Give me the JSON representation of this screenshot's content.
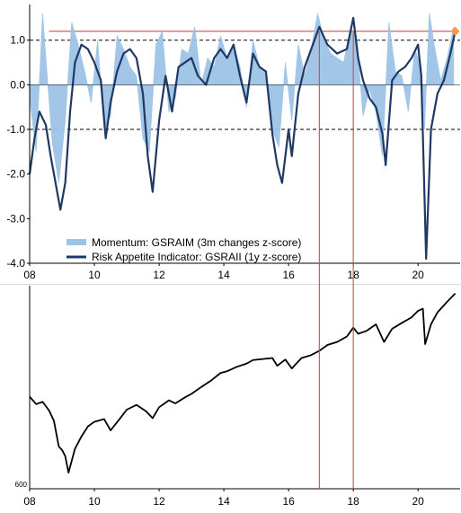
{
  "chart_data": [
    {
      "type": "area+line",
      "title": "",
      "xlabel": "",
      "ylabel": "",
      "xlim": [
        2008.0,
        2021.3
      ],
      "ylim": [
        -4.0,
        1.8
      ],
      "x_ticks": [
        "08",
        "10",
        "12",
        "14",
        "16",
        "18",
        "20"
      ],
      "x_tick_values": [
        2008,
        2010,
        2012,
        2014,
        2016,
        2018,
        2020
      ],
      "y_ticks": [
        "1.0",
        "0.0",
        "-1.0",
        "-2.0",
        "-3.0",
        "-4.0"
      ],
      "y_tick_values": [
        1.0,
        0.0,
        -1.0,
        -2.0,
        -3.0,
        -4.0
      ],
      "reference_lines": [
        {
          "value": 1.0,
          "style": "dashed"
        },
        {
          "value": -1.0,
          "style": "dashed"
        },
        {
          "value": 1.2,
          "style": "solid",
          "color": "#c0504d",
          "x_range": [
            2008.6,
            2021.2
          ]
        }
      ],
      "vertical_markers": [
        2016.95,
        2018.0
      ],
      "latest_point": {
        "x": 2021.15,
        "y": 1.2,
        "color": "#f79646"
      },
      "legend_position": "bottom-left",
      "series": [
        {
          "name": "Momentum: GSRAIM (3m changes z-score)",
          "kind": "area",
          "color": "#9dc3e6",
          "x": [
            2008.0,
            2008.2,
            2008.4,
            2008.5,
            2008.7,
            2008.9,
            2009.1,
            2009.3,
            2009.5,
            2009.7,
            2009.9,
            2010.1,
            2010.3,
            2010.5,
            2010.7,
            2010.9,
            2011.1,
            2011.3,
            2011.5,
            2011.7,
            2011.9,
            2012.1,
            2012.3,
            2012.5,
            2012.7,
            2012.9,
            2013.1,
            2013.3,
            2013.5,
            2013.7,
            2013.9,
            2014.1,
            2014.3,
            2014.5,
            2014.7,
            2014.9,
            2015.1,
            2015.3,
            2015.5,
            2015.7,
            2015.9,
            2016.1,
            2016.3,
            2016.5,
            2016.7,
            2016.9,
            2017.1,
            2017.3,
            2017.5,
            2017.7,
            2017.9,
            2018.1,
            2018.3,
            2018.5,
            2018.7,
            2018.9,
            2019.1,
            2019.3,
            2019.5,
            2019.7,
            2019.9,
            2020.1,
            2020.2,
            2020.35,
            2020.5,
            2020.7,
            2020.9,
            2021.1
          ],
          "values": [
            -0.3,
            -1.5,
            1.6,
            0.6,
            -1.3,
            -2.2,
            -0.8,
            1.4,
            0.9,
            0.3,
            -0.4,
            1.0,
            -1.0,
            -0.7,
            1.1,
            0.8,
            0.4,
            0.2,
            -1.2,
            -1.5,
            0.9,
            1.2,
            -0.6,
            -0.3,
            0.8,
            0.7,
            1.3,
            0.0,
            0.6,
            0.4,
            1.1,
            0.6,
            0.9,
            0.4,
            -0.5,
            1.0,
            0.4,
            0.3,
            -1.0,
            -1.4,
            0.5,
            -0.8,
            0.9,
            0.2,
            0.8,
            1.6,
            1.0,
            0.7,
            0.6,
            0.5,
            1.2,
            1.1,
            -0.7,
            -0.1,
            -0.6,
            -1.6,
            1.4,
            0.3,
            0.2,
            -0.6,
            0.8,
            0.4,
            -1.0,
            1.6,
            0.9,
            0.1,
            0.6,
            1.3
          ]
        },
        {
          "name": "Risk Appetite Indicator: GSRAII (1y z-score)",
          "kind": "line",
          "color": "#1f3864",
          "x": [
            2008.0,
            2008.15,
            2008.3,
            2008.5,
            2008.65,
            2008.8,
            2008.95,
            2009.1,
            2009.25,
            2009.4,
            2009.6,
            2009.8,
            2010.0,
            2010.2,
            2010.35,
            2010.5,
            2010.7,
            2010.9,
            2011.1,
            2011.3,
            2011.5,
            2011.65,
            2011.8,
            2012.0,
            2012.2,
            2012.4,
            2012.6,
            2012.8,
            2013.0,
            2013.2,
            2013.45,
            2013.7,
            2013.9,
            2014.1,
            2014.3,
            2014.5,
            2014.7,
            2014.9,
            2015.1,
            2015.3,
            2015.5,
            2015.65,
            2015.8,
            2016.0,
            2016.1,
            2016.3,
            2016.5,
            2016.7,
            2016.85,
            2016.95,
            2017.2,
            2017.5,
            2017.8,
            2018.0,
            2018.15,
            2018.3,
            2018.5,
            2018.7,
            2018.9,
            2019.0,
            2019.2,
            2019.4,
            2019.6,
            2019.8,
            2020.0,
            2020.1,
            2020.2,
            2020.25,
            2020.4,
            2020.6,
            2020.8,
            2021.0,
            2021.15
          ],
          "values": [
            -2.0,
            -1.2,
            -0.6,
            -0.9,
            -1.6,
            -2.2,
            -2.8,
            -2.2,
            -0.6,
            0.5,
            0.9,
            0.8,
            0.5,
            0.1,
            -1.2,
            -0.4,
            0.3,
            0.7,
            0.8,
            0.6,
            -0.2,
            -1.6,
            -2.4,
            -0.8,
            0.2,
            -0.6,
            0.4,
            0.5,
            0.6,
            0.2,
            0.0,
            0.6,
            0.8,
            0.6,
            0.9,
            0.2,
            -0.4,
            0.7,
            0.4,
            0.3,
            -1.1,
            -1.8,
            -2.2,
            -1.0,
            -1.6,
            -0.2,
            0.4,
            0.8,
            1.1,
            1.3,
            0.9,
            0.7,
            0.8,
            1.5,
            0.6,
            0.1,
            -0.3,
            -0.5,
            -1.1,
            -1.8,
            0.1,
            0.3,
            0.4,
            0.6,
            0.9,
            0.2,
            -2.5,
            -3.9,
            -1.0,
            -0.2,
            0.1,
            0.7,
            1.2
          ]
        }
      ]
    },
    {
      "type": "line",
      "title": "",
      "xlabel": "",
      "ylabel": "",
      "xlim": [
        2008.0,
        2021.3
      ],
      "ylim": [
        600,
        4200
      ],
      "x_ticks": [
        "08",
        "10",
        "12",
        "14",
        "16",
        "18",
        "20"
      ],
      "x_tick_values": [
        2008,
        2010,
        2012,
        2014,
        2016,
        2018,
        2020
      ],
      "y_ticks": [
        "600"
      ],
      "y_tick_values": [
        600
      ],
      "y_scale": "log",
      "vertical_markers": [
        2016.95,
        2018.0
      ],
      "series": [
        {
          "name": "",
          "color": "#000000",
          "x": [
            2008.0,
            2008.2,
            2008.4,
            2008.6,
            2008.75,
            2008.9,
            2009.0,
            2009.1,
            2009.2,
            2009.4,
            2009.6,
            2009.8,
            2010.0,
            2010.3,
            2010.5,
            2010.8,
            2011.0,
            2011.3,
            2011.6,
            2011.8,
            2012.0,
            2012.3,
            2012.5,
            2012.8,
            2013.0,
            2013.3,
            2013.6,
            2013.9,
            2014.1,
            2014.4,
            2014.7,
            2014.9,
            2015.2,
            2015.5,
            2015.65,
            2015.9,
            2016.1,
            2016.4,
            2016.7,
            2016.95,
            2017.2,
            2017.5,
            2017.8,
            2018.0,
            2018.15,
            2018.4,
            2018.7,
            2018.95,
            2019.2,
            2019.5,
            2019.8,
            2020.0,
            2020.15,
            2020.22,
            2020.4,
            2020.6,
            2020.9,
            2021.15
          ],
          "values": [
            1450,
            1350,
            1380,
            1270,
            1150,
            900,
            870,
            820,
            700,
            880,
            990,
            1090,
            1140,
            1170,
            1050,
            1180,
            1280,
            1340,
            1260,
            1180,
            1310,
            1400,
            1360,
            1440,
            1490,
            1590,
            1690,
            1820,
            1850,
            1930,
            1990,
            2060,
            2080,
            2100,
            1950,
            2070,
            1900,
            2100,
            2160,
            2250,
            2380,
            2450,
            2580,
            2810,
            2650,
            2720,
            2900,
            2450,
            2780,
            2940,
            3100,
            3300,
            3370,
            2400,
            2900,
            3250,
            3600,
            3900
          ]
        }
      ]
    }
  ]
}
